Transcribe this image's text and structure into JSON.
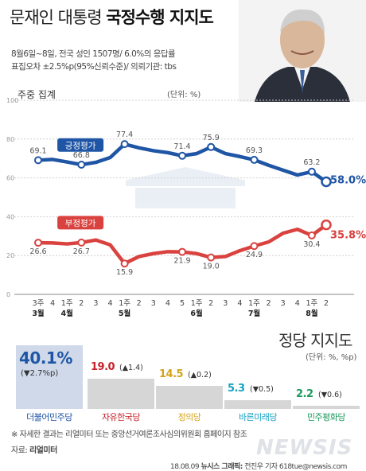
{
  "header": {
    "title_plain": "문재인 대통령",
    "title_bold": "국정수행 지지도",
    "info_line1": "8월6일~8일, 전국 성인 1507명/ 6.0%의 응답률",
    "info_line2": "표집오차 ±2.5%p(95%신뢰수준)/ 의뢰기관: tbs"
  },
  "chart_data": [
    {
      "type": "line",
      "subtitle": "주중 집계",
      "unit": "(단위: %)",
      "ylim": [
        0,
        100
      ],
      "yticks": [
        "100",
        "80",
        "60",
        "40",
        "20",
        "0"
      ],
      "x_week_labels": [
        "3주",
        "4",
        "1주",
        "2",
        "3",
        "4",
        "1주",
        "2",
        "3",
        "4",
        "5",
        "1주",
        "2",
        "3",
        "4",
        "1주",
        "2",
        "3",
        "4",
        "1주",
        "2"
      ],
      "x_month_labels": [
        "3월",
        "4월",
        "5월",
        "6월",
        "7월",
        "8월"
      ],
      "series": [
        {
          "name": "긍정평가",
          "color": "#1f55a5",
          "values": [
            69.1,
            69.5,
            68.2,
            66.8,
            68.0,
            70.5,
            77.4,
            75.5,
            74.0,
            73.0,
            71.4,
            72.5,
            75.9,
            72.5,
            71.0,
            69.3,
            66.5,
            64.0,
            61.5,
            63.2,
            58.0
          ],
          "labels": [
            "69.1",
            "66.8",
            "77.4",
            "71.4",
            "75.9",
            "69.3",
            "63.2"
          ],
          "end_label": "58.0%"
        },
        {
          "name": "부정평가",
          "color": "#d9423f",
          "values": [
            26.6,
            26.5,
            26.0,
            26.7,
            28.0,
            25.5,
            15.9,
            19.5,
            21.0,
            22.0,
            21.9,
            21.0,
            19.0,
            19.5,
            22.5,
            24.9,
            27.0,
            31.5,
            33.5,
            30.4,
            35.8
          ],
          "labels": [
            "26.6",
            "26.7",
            "15.9",
            "21.9",
            "19.0",
            "24.9",
            "30.4"
          ],
          "end_label": "35.8%"
        }
      ]
    },
    {
      "type": "bar",
      "title": "정당 지지도",
      "unit": "(단위: %, %p)",
      "categories": [
        "더불어민주당",
        "자유한국당",
        "정의당",
        "바른미래당",
        "민주평화당"
      ],
      "values": [
        40.1,
        19.0,
        14.5,
        5.3,
        2.2
      ],
      "value_labels": [
        "40.1%",
        "19.0",
        "14.5",
        "5.3",
        "2.2"
      ],
      "changes": [
        "(▼2.7%p)",
        "(▲1.4)",
        "(▲0.2)",
        "(▼0.5)",
        "(▼0.6)"
      ],
      "colors": [
        "#1f55a5",
        "#c8222a",
        "#d4a31a",
        "#16a3c3",
        "#1b9a5d"
      ]
    }
  ],
  "footer": {
    "note": "※ 자세한 결과는 리얼미터 또는 중앙선거여론조사심의위원회 홈페이지 참조",
    "source_label": "자료:",
    "source": "리얼미터",
    "credit_date": "18.08.09",
    "credit_agency": "뉴시스 그래픽:",
    "credit_author": "전진우 기자 618tue@newsis.com",
    "logo": "NEWSIS"
  }
}
